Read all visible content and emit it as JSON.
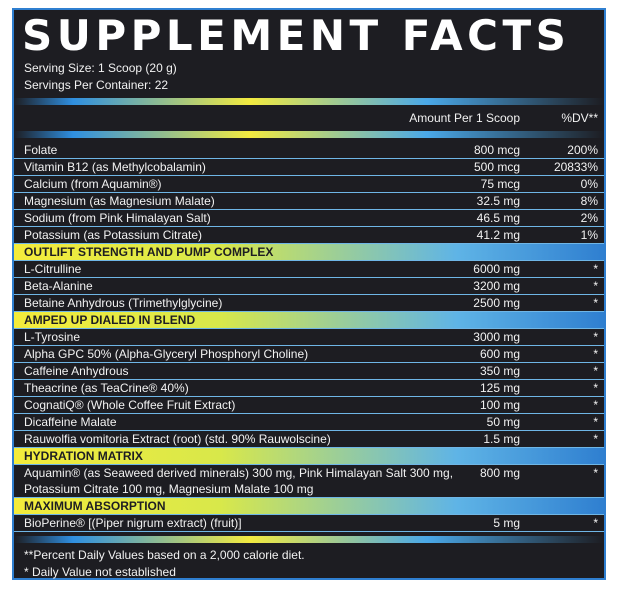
{
  "title": "SUPPLEMENT FACTS",
  "serving_size": "Serving Size: 1 Scoop (20 g)",
  "servings_per_container": "Servings Per Container: 22",
  "column_header": {
    "amount": "Amount Per 1 Scoop",
    "dv": "%DV**"
  },
  "rows": [
    {
      "name": "Folate",
      "amount": "800 mcg",
      "dv": "200%"
    },
    {
      "name": "Vitamin B12 (as Methylcobalamin)",
      "amount": "500 mcg",
      "dv": "20833%"
    },
    {
      "name": "Calcium (from Aquamin®)",
      "amount": "75 mcg",
      "dv": "0%"
    },
    {
      "name": "Magnesium (as Magnesium Malate)",
      "amount": "32.5 mg",
      "dv": "8%"
    },
    {
      "name": "Sodium (from Pink Himalayan Salt)",
      "amount": "46.5 mg",
      "dv": "2%"
    },
    {
      "name": "Potassium (as Potassium Citrate)",
      "amount": "41.2 mg",
      "dv": "1%"
    },
    {
      "heading": "OUTLIFT STRENGTH AND PUMP COMPLEX"
    },
    {
      "name": "L-Citrulline",
      "amount": "6000 mg",
      "dv": "*"
    },
    {
      "name": "Beta-Alanine",
      "amount": "3200 mg",
      "dv": "*"
    },
    {
      "name": "Betaine Anhydrous (Trimethylglycine)",
      "amount": "2500 mg",
      "dv": "*"
    },
    {
      "heading": "AMPED UP DIALED IN BLEND"
    },
    {
      "name": "L-Tyrosine",
      "amount": "3000 mg",
      "dv": "*"
    },
    {
      "name": "Alpha GPC 50% (Alpha-Glyceryl Phosphoryl Choline)",
      "amount": "600 mg",
      "dv": "*"
    },
    {
      "name": "Caffeine Anhydrous",
      "amount": "350 mg",
      "dv": "*"
    },
    {
      "name": "Theacrine (as TeaCrine® 40%)",
      "amount": "125 mg",
      "dv": "*"
    },
    {
      "name": "CognatiQ® (Whole Coffee Fruit Extract)",
      "amount": "100 mg",
      "dv": "*"
    },
    {
      "name": "Dicaffeine Malate",
      "amount": "50 mg",
      "dv": "*"
    },
    {
      "name": "Rauwolfia vomitoria Extract (root) (std. 90% Rauwolscine)",
      "amount": "1.5 mg",
      "dv": "*"
    },
    {
      "heading": "HYDRATION MATRIX"
    },
    {
      "name": "Aquamin® (as Seaweed derived minerals) 300 mg, Pink Himalayan Salt 300 mg, Potassium Citrate 100 mg, Magnesium Malate 100 mg",
      "amount": "800 mg",
      "dv": "*"
    },
    {
      "heading": "MAXIMUM ABSORPTION"
    },
    {
      "name": "BioPerine® [(Piper nigrum extract) (fruit)]",
      "amount": "5 mg",
      "dv": "*"
    }
  ],
  "footnotes": [
    "**Percent Daily Values based on a 2,000 calorie diet.",
    "* Daily Value not established"
  ]
}
